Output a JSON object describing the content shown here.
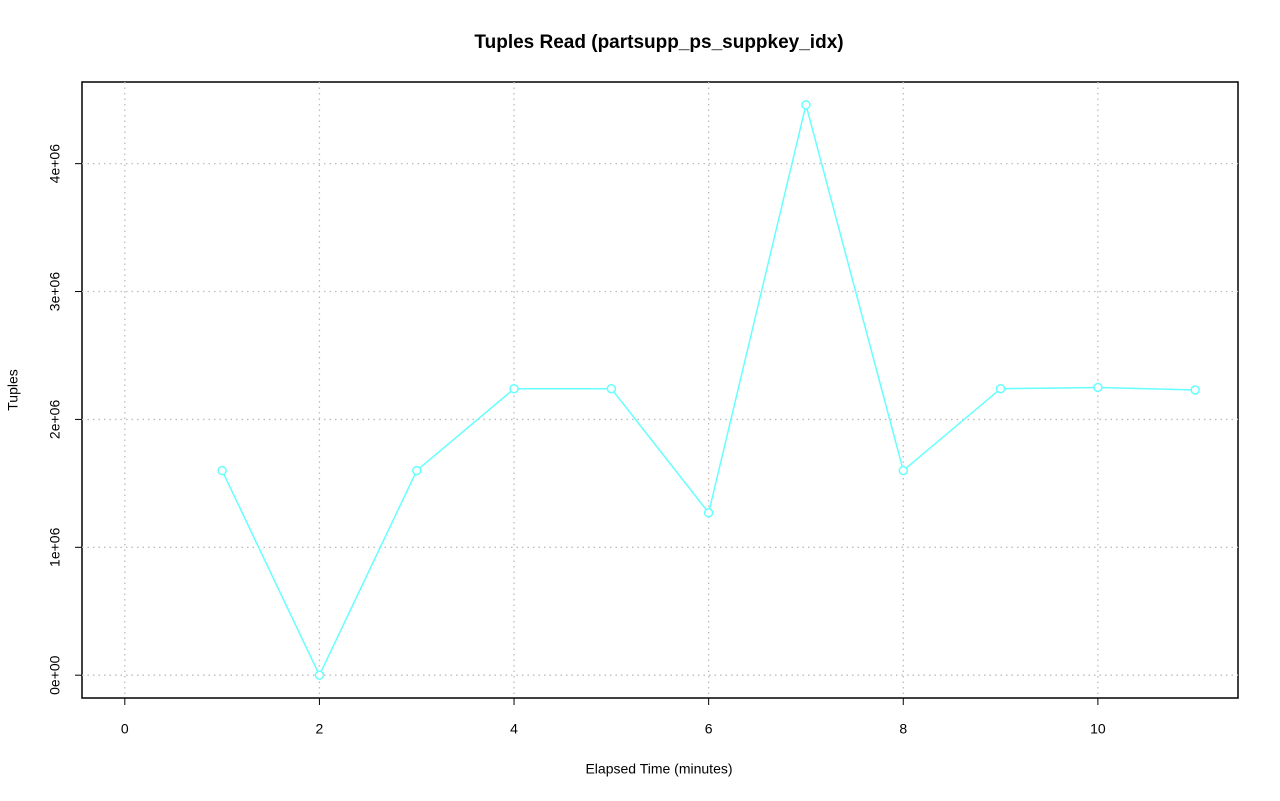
{
  "chart_data": {
    "type": "line",
    "title": "Tuples Read (partsupp_ps_suppkey_idx)",
    "x_label": "Elapsed Time (minutes)",
    "y_label": "Tuples",
    "x": [
      1,
      2,
      3,
      4,
      5,
      6,
      7,
      8,
      9,
      10,
      11
    ],
    "series": [
      {
        "name": "partsupp_ps_suppkey_idx",
        "color": "#66ffff",
        "values": [
          1600000,
          0,
          1600000,
          2240000,
          2240000,
          1270000,
          4460000,
          1600000,
          2240000,
          2250000,
          2230000
        ]
      }
    ],
    "xlim": [
      -0.44,
      11.44
    ],
    "ylim": [
      -178400,
      4638400
    ],
    "xticks": [
      0,
      2,
      4,
      6,
      8,
      10
    ],
    "yticks": [
      {
        "value": 0,
        "label": "0e+00"
      },
      {
        "value": 1000000,
        "label": "1e+06"
      },
      {
        "value": 2000000,
        "label": "2e+06"
      },
      {
        "value": 3000000,
        "label": "3e+06"
      },
      {
        "value": 4000000,
        "label": "4e+06"
      }
    ],
    "grid": true
  }
}
